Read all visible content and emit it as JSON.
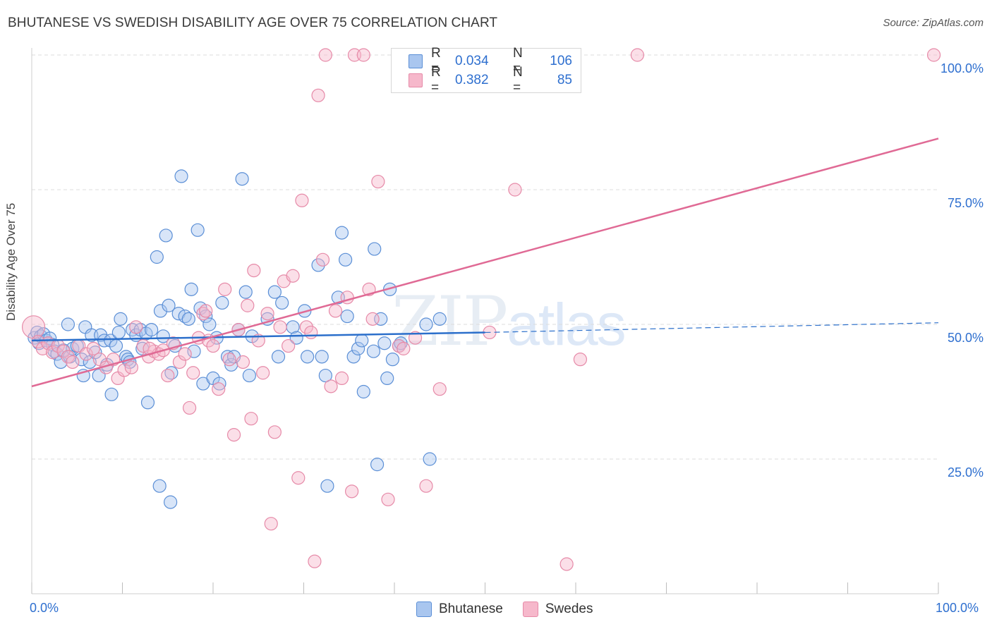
{
  "header": {
    "title": "BHUTANESE VS SWEDISH DISABILITY AGE OVER 75 CORRELATION CHART",
    "source": "Source: ZipAtlas.com"
  },
  "watermark": {
    "zip": "ZIP",
    "atlas": "atlas"
  },
  "legend_top": {
    "rows": [
      {
        "r_label": "R =",
        "r_value": "0.034",
        "n_label": "N =",
        "n_value": "106"
      },
      {
        "r_label": "R =",
        "r_value": "0.382",
        "n_label": "N =",
        "n_value": "85"
      }
    ]
  },
  "legend_bottom": {
    "items": [
      "Bhutanese",
      "Swedes"
    ]
  },
  "colors": {
    "blue_fill": "#a9c6ef",
    "blue_stroke": "#5b8fd6",
    "blue_line": "#2b6fcb",
    "pink_fill": "#f6b8cb",
    "pink_stroke": "#e68aa8",
    "pink_line": "#e06a95",
    "grid": "#dcdcdc",
    "tick_label": "#2e6fcf"
  },
  "chart_data": {
    "type": "scatter",
    "title": "BHUTANESE VS SWEDISH DISABILITY AGE OVER 75 CORRELATION CHART",
    "xlabel": "",
    "ylabel": "Disability Age Over 75",
    "xlim": [
      0,
      100
    ],
    "ylim": [
      0,
      104
    ],
    "x_tick_labels": [
      "0.0%",
      "100.0%"
    ],
    "y_ticks": [
      25,
      50,
      75,
      100
    ],
    "y_tick_labels": [
      "25.0%",
      "50.0%",
      "75.0%",
      "100.0%"
    ],
    "grid": true,
    "legend_position": "bottom",
    "series": [
      {
        "name": "Bhutanese",
        "r": 0.034,
        "n": 106,
        "trend": {
          "x0": 0,
          "y0": 47.0,
          "x1": 50,
          "y1": 48.5,
          "dashed_to_x": 100,
          "dashed_to_y": 50.3
        },
        "points": [
          [
            0.3,
            47.5
          ],
          [
            0.6,
            48.5
          ],
          [
            0.8,
            46.5
          ],
          [
            1.0,
            47.8
          ],
          [
            1.3,
            48.2
          ],
          [
            1.6,
            47.0
          ],
          [
            2.0,
            47.4
          ],
          [
            2.3,
            46.2
          ],
          [
            2.5,
            45.0
          ],
          [
            2.8,
            44.5
          ],
          [
            3.2,
            43.0
          ],
          [
            3.5,
            45.2
          ],
          [
            4.0,
            50.0
          ],
          [
            4.2,
            44.0
          ],
          [
            4.5,
            45.5
          ],
          [
            5.0,
            46.0
          ],
          [
            5.5,
            43.5
          ],
          [
            5.7,
            40.5
          ],
          [
            5.9,
            49.5
          ],
          [
            6.4,
            43.0
          ],
          [
            6.6,
            48.0
          ],
          [
            7.0,
            44.8
          ],
          [
            7.4,
            40.5
          ],
          [
            7.6,
            48.0
          ],
          [
            8.0,
            47.0
          ],
          [
            8.3,
            42.5
          ],
          [
            8.7,
            47.0
          ],
          [
            8.8,
            37.0
          ],
          [
            9.3,
            46.0
          ],
          [
            9.6,
            48.5
          ],
          [
            9.8,
            51.0
          ],
          [
            10.4,
            44.0
          ],
          [
            10.6,
            43.5
          ],
          [
            10.8,
            43.0
          ],
          [
            11.1,
            49.0
          ],
          [
            11.5,
            48.0
          ],
          [
            12.0,
            49.0
          ],
          [
            12.2,
            45.5
          ],
          [
            12.6,
            48.3
          ],
          [
            12.8,
            35.5
          ],
          [
            13.2,
            49.0
          ],
          [
            13.8,
            62.5
          ],
          [
            14.2,
            52.5
          ],
          [
            14.5,
            47.8
          ],
          [
            14.8,
            66.5
          ],
          [
            15.1,
            53.5
          ],
          [
            15.4,
            41.0
          ],
          [
            15.8,
            46.0
          ],
          [
            16.2,
            52.0
          ],
          [
            16.5,
            77.5
          ],
          [
            16.9,
            51.5
          ],
          [
            17.3,
            51.0
          ],
          [
            17.6,
            56.5
          ],
          [
            17.9,
            45.0
          ],
          [
            18.3,
            67.5
          ],
          [
            18.6,
            53.0
          ],
          [
            18.9,
            39.0
          ],
          [
            19.2,
            51.5
          ],
          [
            19.6,
            50.0
          ],
          [
            20.0,
            40.0
          ],
          [
            20.4,
            47.5
          ],
          [
            20.7,
            39.0
          ],
          [
            21.0,
            54.0
          ],
          [
            21.6,
            44.0
          ],
          [
            22.0,
            42.5
          ],
          [
            22.3,
            44.0
          ],
          [
            22.8,
            49.0
          ],
          [
            23.2,
            77.0
          ],
          [
            23.6,
            56.0
          ],
          [
            24.0,
            40.5
          ],
          [
            24.3,
            47.8
          ],
          [
            26.8,
            56.0
          ],
          [
            27.2,
            44.0
          ],
          [
            27.6,
            54.0
          ],
          [
            28.8,
            49.5
          ],
          [
            29.2,
            47.5
          ],
          [
            30.1,
            52.5
          ],
          [
            30.4,
            44.0
          ],
          [
            31.6,
            61.0
          ],
          [
            32.0,
            44.0
          ],
          [
            32.4,
            40.5
          ],
          [
            32.6,
            20.0
          ],
          [
            33.8,
            55.0
          ],
          [
            34.2,
            67.0
          ],
          [
            34.6,
            62.0
          ],
          [
            34.8,
            51.5
          ],
          [
            35.5,
            44.0
          ],
          [
            36.0,
            45.5
          ],
          [
            36.4,
            47.0
          ],
          [
            36.6,
            37.5
          ],
          [
            37.7,
            45.0
          ],
          [
            37.8,
            64.0
          ],
          [
            38.1,
            24.0
          ],
          [
            38.5,
            51.0
          ],
          [
            38.9,
            46.5
          ],
          [
            39.2,
            40.0
          ],
          [
            39.5,
            56.5
          ],
          [
            39.8,
            43.5
          ],
          [
            40.5,
            46.0
          ],
          [
            40.7,
            46.5
          ],
          [
            43.5,
            50.0
          ],
          [
            43.9,
            25.0
          ],
          [
            45.0,
            51.0
          ],
          [
            15.3,
            17.0
          ],
          [
            14.1,
            20.0
          ],
          [
            26.0,
            51.0
          ]
        ]
      },
      {
        "name": "Swedes",
        "r": 0.382,
        "n": 85,
        "trend": {
          "x0": 0,
          "y0": 38.5,
          "x1": 100,
          "y1": 84.5
        },
        "points": [
          [
            0.2,
            49.5
          ],
          [
            0.7,
            46.8
          ],
          [
            1.2,
            45.5
          ],
          [
            1.8,
            46.5
          ],
          [
            2.3,
            44.8
          ],
          [
            2.9,
            46.0
          ],
          [
            3.5,
            45.0
          ],
          [
            4.0,
            44.0
          ],
          [
            4.5,
            43.0
          ],
          [
            5.2,
            46.0
          ],
          [
            6.0,
            44.5
          ],
          [
            6.8,
            45.5
          ],
          [
            7.5,
            43.5
          ],
          [
            8.2,
            42.0
          ],
          [
            9.0,
            43.5
          ],
          [
            9.5,
            40.0
          ],
          [
            10.2,
            41.5
          ],
          [
            11.0,
            42.0
          ],
          [
            11.5,
            49.5
          ],
          [
            12.3,
            46.0
          ],
          [
            12.9,
            44.0
          ],
          [
            13.5,
            45.0
          ],
          [
            14.0,
            44.5
          ],
          [
            14.5,
            45.2
          ],
          [
            15.0,
            40.5
          ],
          [
            15.6,
            46.5
          ],
          [
            16.3,
            43.0
          ],
          [
            16.9,
            44.5
          ],
          [
            17.4,
            34.5
          ],
          [
            17.8,
            41.0
          ],
          [
            18.4,
            47.5
          ],
          [
            18.9,
            52.0
          ],
          [
            19.5,
            47.0
          ],
          [
            20.0,
            46.0
          ],
          [
            20.6,
            38.0
          ],
          [
            21.3,
            56.5
          ],
          [
            21.8,
            43.5
          ],
          [
            22.3,
            29.5
          ],
          [
            22.8,
            49.0
          ],
          [
            23.3,
            43.0
          ],
          [
            23.8,
            53.5
          ],
          [
            24.2,
            32.5
          ],
          [
            24.5,
            60.0
          ],
          [
            25.0,
            47.0
          ],
          [
            25.5,
            41.0
          ],
          [
            26.0,
            52.0
          ],
          [
            26.4,
            13.0
          ],
          [
            26.8,
            30.0
          ],
          [
            27.4,
            49.5
          ],
          [
            27.8,
            58.0
          ],
          [
            28.3,
            46.0
          ],
          [
            28.8,
            59.0
          ],
          [
            29.4,
            21.5
          ],
          [
            29.8,
            73.0
          ],
          [
            30.3,
            49.5
          ],
          [
            30.8,
            48.5
          ],
          [
            31.2,
            6.0
          ],
          [
            31.6,
            92.5
          ],
          [
            32.1,
            62.0
          ],
          [
            32.4,
            100.0
          ],
          [
            33.0,
            38.5
          ],
          [
            34.2,
            40.0
          ],
          [
            34.8,
            55.0
          ],
          [
            35.3,
            19.0
          ],
          [
            35.6,
            100.0
          ],
          [
            36.6,
            100.0
          ],
          [
            37.2,
            56.5
          ],
          [
            37.6,
            51.0
          ],
          [
            38.2,
            76.5
          ],
          [
            39.3,
            17.5
          ],
          [
            40.5,
            46.0
          ],
          [
            41.0,
            45.5
          ],
          [
            42.3,
            47.5
          ],
          [
            43.5,
            20.0
          ],
          [
            45.0,
            38.0
          ],
          [
            50.5,
            48.5
          ],
          [
            53.3,
            75.0
          ],
          [
            54.0,
            100.0
          ],
          [
            59.0,
            5.5
          ],
          [
            60.5,
            43.5
          ],
          [
            66.8,
            100.0
          ],
          [
            99.5,
            100.0
          ],
          [
            13.0,
            45.5
          ],
          [
            19.2,
            52.5
          ],
          [
            33.5,
            52.5
          ]
        ]
      }
    ]
  }
}
